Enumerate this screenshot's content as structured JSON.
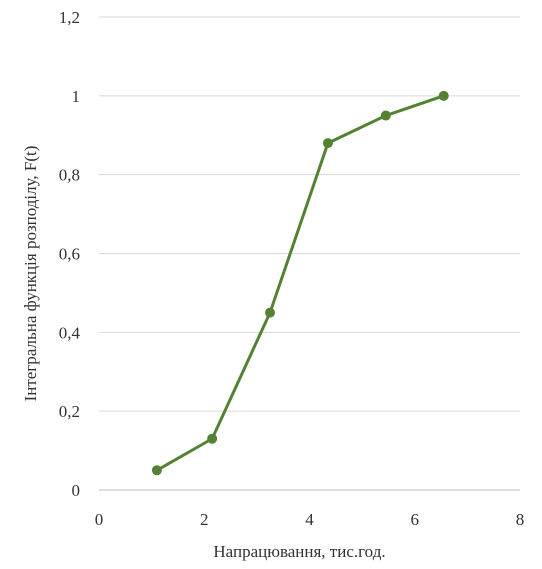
{
  "chart_data": {
    "type": "line",
    "xlabel": "Напрацювання, тис.год.",
    "ylabel": "Інтегральна функція розподілу, F(t)",
    "xlim": [
      0,
      8
    ],
    "ylim": [
      0,
      1.2
    ],
    "x_ticks": [
      0,
      2,
      4,
      6,
      8
    ],
    "x_tick_labels": [
      "0",
      "2",
      "4",
      "6",
      "8"
    ],
    "y_ticks": [
      0,
      0.2,
      0.4,
      0.6,
      0.8,
      1.0,
      1.2
    ],
    "y_tick_labels": [
      "0",
      "0,2",
      "0,4",
      "0,6",
      "0,8",
      "1",
      "1,2"
    ],
    "grid": "horizontal",
    "legend": "none",
    "series": [
      {
        "color": "#548235",
        "x": [
          1.1,
          2.15,
          3.25,
          4.35,
          5.45,
          6.55
        ],
        "y": [
          0.05,
          0.13,
          0.45,
          0.88,
          0.95,
          1.0
        ]
      }
    ]
  }
}
